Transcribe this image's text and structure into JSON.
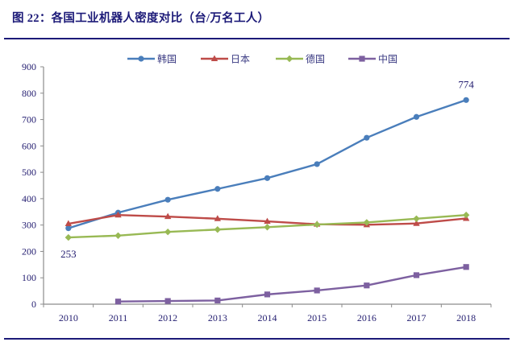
{
  "header": {
    "title": "图 22：各国工业机器人密度对比（台/万名工人）"
  },
  "chart_data": {
    "type": "line",
    "title": "各国工业机器人密度对比（台/万名工人）",
    "figure_label": "图 22",
    "xlabel": "",
    "ylabel": "",
    "categories": [
      "2010",
      "2011",
      "2012",
      "2013",
      "2014",
      "2015",
      "2016",
      "2017",
      "2018"
    ],
    "ylim": [
      0,
      900
    ],
    "yticks": [
      0,
      100,
      200,
      300,
      400,
      500,
      600,
      700,
      800,
      900
    ],
    "grid": false,
    "legend_position": "top-center",
    "series": [
      {
        "name": "韩国",
        "color": "#4a7ebb",
        "marker": "circle",
        "values": [
          288,
          347,
          396,
          437,
          478,
          531,
          631,
          710,
          774
        ]
      },
      {
        "name": "日本",
        "color": "#be4b48",
        "marker": "triangle",
        "values": [
          305,
          338,
          332,
          324,
          314,
          303,
          301,
          306,
          325
        ]
      },
      {
        "name": "德国",
        "color": "#98b954",
        "marker": "diamond",
        "values": [
          253,
          260,
          274,
          283,
          292,
          302,
          310,
          324,
          338
        ]
      },
      {
        "name": "中国",
        "color": "#7d60a0",
        "marker": "square",
        "values": [
          null,
          10,
          12,
          14,
          37,
          52,
          71,
          110,
          141
        ]
      }
    ],
    "annotations": [
      {
        "text": "774",
        "series": "韩国",
        "category": "2018",
        "placement": "above"
      },
      {
        "text": "253",
        "series": "德国",
        "category": "2010",
        "placement": "below"
      }
    ]
  }
}
